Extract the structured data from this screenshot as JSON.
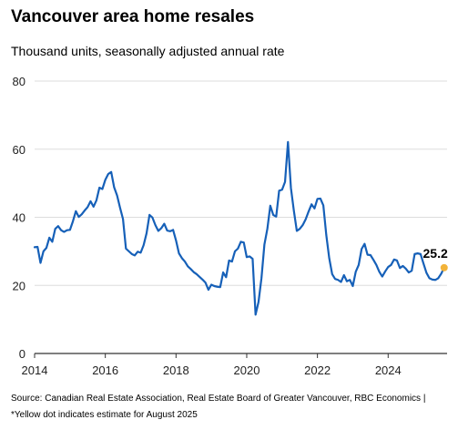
{
  "chart_data": {
    "type": "line",
    "title": "Vancouver area home resales",
    "subtitle": "Thousand units, seasonally adjusted annual rate",
    "xlabel": "",
    "ylabel": "",
    "x_ticks": [
      "2014",
      "2016",
      "2018",
      "2020",
      "2022",
      "2024"
    ],
    "y_ticks": [
      "0",
      "20",
      "40",
      "60",
      "80"
    ],
    "ylim": [
      0,
      80
    ],
    "xlim": [
      "2014-01",
      "2025-09"
    ],
    "grid": "horizontal",
    "line_color": "#1660b8",
    "estimate_color": "#f2b33a",
    "x": [
      "2014-01",
      "2014-02",
      "2014-03",
      "2014-04",
      "2014-05",
      "2014-06",
      "2014-07",
      "2014-08",
      "2014-09",
      "2014-10",
      "2014-11",
      "2014-12",
      "2015-01",
      "2015-02",
      "2015-03",
      "2015-04",
      "2015-05",
      "2015-06",
      "2015-07",
      "2015-08",
      "2015-09",
      "2015-10",
      "2015-11",
      "2015-12",
      "2016-01",
      "2016-02",
      "2016-03",
      "2016-04",
      "2016-05",
      "2016-06",
      "2016-07",
      "2016-08",
      "2016-09",
      "2016-10",
      "2016-11",
      "2016-12",
      "2017-01",
      "2017-02",
      "2017-03",
      "2017-04",
      "2017-05",
      "2017-06",
      "2017-07",
      "2017-08",
      "2017-09",
      "2017-10",
      "2017-11",
      "2017-12",
      "2018-01",
      "2018-02",
      "2018-03",
      "2018-04",
      "2018-05",
      "2018-06",
      "2018-07",
      "2018-08",
      "2018-09",
      "2018-10",
      "2018-11",
      "2018-12",
      "2019-01",
      "2019-02",
      "2019-03",
      "2019-04",
      "2019-05",
      "2019-06",
      "2019-07",
      "2019-08",
      "2019-09",
      "2019-10",
      "2019-11",
      "2019-12",
      "2020-01",
      "2020-02",
      "2020-03",
      "2020-04",
      "2020-05",
      "2020-06",
      "2020-07",
      "2020-08",
      "2020-09",
      "2020-10",
      "2020-11",
      "2020-12",
      "2021-01",
      "2021-02",
      "2021-03",
      "2021-04",
      "2021-05",
      "2021-06",
      "2021-07",
      "2021-08",
      "2021-09",
      "2021-10",
      "2021-11",
      "2021-12",
      "2022-01",
      "2022-02",
      "2022-03",
      "2022-04",
      "2022-05",
      "2022-06",
      "2022-07",
      "2022-08",
      "2022-09",
      "2022-10",
      "2022-11",
      "2022-12",
      "2023-01",
      "2023-02",
      "2023-03",
      "2023-04",
      "2023-05",
      "2023-06",
      "2023-07",
      "2023-08",
      "2023-09",
      "2023-10",
      "2023-11",
      "2023-12",
      "2024-01",
      "2024-02",
      "2024-03",
      "2024-04",
      "2024-05",
      "2024-06",
      "2024-07",
      "2024-08",
      "2024-09",
      "2024-10",
      "2024-11",
      "2024-12",
      "2025-01",
      "2025-02",
      "2025-03",
      "2025-04",
      "2025-05",
      "2025-06",
      "2025-07",
      "2025-08"
    ],
    "series": [
      {
        "values": [
          31.2,
          31.3,
          26.6,
          30.0,
          31.0,
          34.0,
          32.8,
          36.6,
          37.4,
          36.2,
          35.7,
          36.2,
          36.3,
          38.8,
          41.8,
          40.1,
          40.9,
          42.0,
          43.0,
          44.7,
          43.1,
          45.0,
          48.7,
          48.3,
          51.0,
          52.7,
          53.3,
          48.8,
          46.4,
          42.8,
          39.5,
          30.8,
          30.0,
          29.2,
          28.8,
          29.9,
          29.6,
          31.8,
          35.3,
          40.7,
          39.9,
          37.7,
          36.0,
          36.8,
          38.1,
          36.1,
          35.9,
          36.3,
          33.2,
          29.4,
          28.0,
          27.0,
          25.6,
          24.8,
          23.9,
          23.3,
          22.5,
          21.7,
          20.8,
          18.7,
          20.2,
          19.8,
          19.6,
          19.5,
          23.8,
          22.4,
          27.3,
          27.0,
          30.0,
          30.8,
          32.8,
          32.6,
          28.3,
          28.5,
          27.8,
          11.4,
          15.1,
          22.1,
          32.0,
          36.6,
          43.4,
          40.7,
          40.2,
          47.8,
          48.1,
          50.4,
          62.1,
          48.6,
          41.9,
          36.0,
          36.6,
          37.7,
          39.4,
          41.7,
          43.8,
          42.6,
          45.4,
          45.5,
          43.5,
          34.8,
          28.0,
          23.3,
          21.9,
          21.6,
          21.0,
          23.0,
          21.2,
          21.6,
          19.8,
          24.0,
          26.0,
          30.7,
          32.2,
          29.0,
          28.9,
          27.5,
          26.0,
          24.0,
          22.6,
          24.1,
          25.4,
          26.0,
          27.6,
          27.3,
          25.1,
          25.7,
          24.9,
          23.8,
          24.3,
          29.2,
          29.4,
          29.2,
          26.4,
          23.7,
          22.1,
          21.7,
          21.6,
          22.1,
          23.4,
          25.2
        ]
      }
    ],
    "estimate": {
      "x": "2025-08",
      "value": 25.2,
      "label": "25.2"
    }
  },
  "footer": {
    "source": "Source: Canadian Real Estate Association, Real Estate Board of Greater Vancouver, RBC Economics |",
    "note": "*Yellow dot indicates estimate for August 2025"
  }
}
